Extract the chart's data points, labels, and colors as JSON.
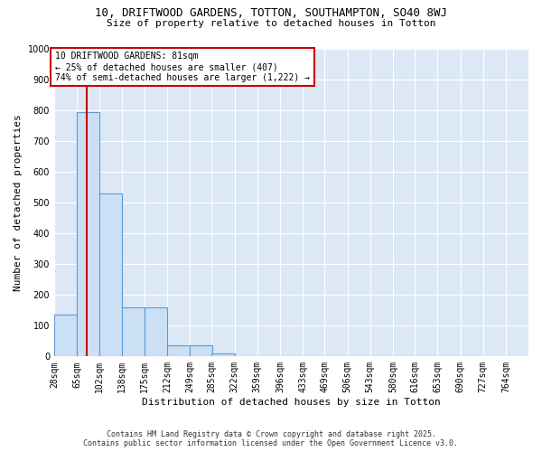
{
  "title_line1": "10, DRIFTWOOD GARDENS, TOTTON, SOUTHAMPTON, SO40 8WJ",
  "title_line2": "Size of property relative to detached houses in Totton",
  "xlabel": "Distribution of detached houses by size in Totton",
  "ylabel": "Number of detached properties",
  "bar_values": [
    135,
    795,
    530,
    160,
    160,
    37,
    37,
    10,
    0,
    0,
    0,
    0,
    0,
    0,
    0,
    0,
    0,
    0,
    0
  ],
  "bin_labels": [
    "28sqm",
    "65sqm",
    "102sqm",
    "138sqm",
    "175sqm",
    "212sqm",
    "249sqm",
    "285sqm",
    "322sqm",
    "359sqm",
    "396sqm",
    "433sqm",
    "469sqm",
    "506sqm",
    "543sqm",
    "580sqm",
    "616sqm",
    "653sqm",
    "690sqm",
    "727sqm",
    "764sqm"
  ],
  "bar_color": "#cce0f5",
  "bar_edge_color": "#5b9bd5",
  "fig_bg_color": "#ffffff",
  "ax_bg_color": "#dce8f5",
  "grid_color": "#ffffff",
  "property_line_x": 81,
  "property_line_color": "#cc0000",
  "annotation_text": "10 DRIFTWOOD GARDENS: 81sqm\n← 25% of detached houses are smaller (407)\n74% of semi-detached houses are larger (1,222) →",
  "annotation_box_color": "#ffffff",
  "annotation_box_edge": "#cc0000",
  "ylim": [
    0,
    1000
  ],
  "yticks": [
    0,
    100,
    200,
    300,
    400,
    500,
    600,
    700,
    800,
    900,
    1000
  ],
  "footer_line1": "Contains HM Land Registry data © Crown copyright and database right 2025.",
  "footer_line2": "Contains public sector information licensed under the Open Government Licence v3.0.",
  "bin_edges": [
    28,
    65,
    102,
    138,
    175,
    212,
    249,
    285,
    322,
    359,
    396,
    433,
    469,
    506,
    543,
    580,
    616,
    653,
    690,
    727,
    764
  ],
  "title1_fontsize": 9,
  "title2_fontsize": 8,
  "ylabel_fontsize": 8,
  "xlabel_fontsize": 8,
  "tick_fontsize": 7,
  "annot_fontsize": 7,
  "footer_fontsize": 6
}
